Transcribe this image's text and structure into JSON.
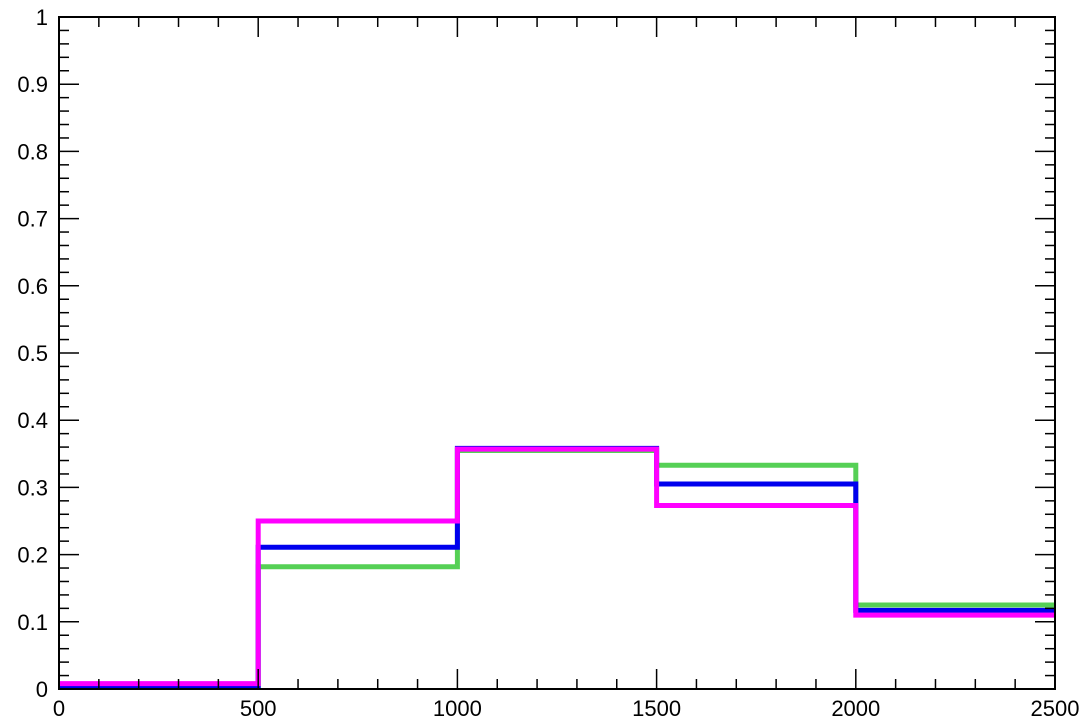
{
  "chart_data": {
    "type": "line",
    "title": "",
    "xlabel": "",
    "ylabel": "",
    "xlim": [
      0,
      2500
    ],
    "ylim": [
      0,
      1
    ],
    "grid": false,
    "x_ticks": [
      0,
      500,
      1000,
      1500,
      2000,
      2500
    ],
    "x_tick_labels": [
      "0",
      "500",
      "1000",
      "1500",
      "2000",
      "2500"
    ],
    "y_ticks": [
      0,
      0.1,
      0.2,
      0.3,
      0.4,
      0.5,
      0.6,
      0.7,
      0.8,
      0.9,
      1
    ],
    "y_tick_labels": [
      "0",
      "0.1",
      "0.2",
      "0.3",
      "0.4",
      "0.5",
      "0.6",
      "0.7",
      "0.8",
      "0.9",
      "1"
    ],
    "bin_edges": [
      0,
      500,
      1000,
      1500,
      2000,
      2500
    ],
    "series": [
      {
        "color": "#55d055",
        "values": [
          0.005,
          0.182,
          0.355,
          0.333,
          0.125
        ]
      },
      {
        "color": "#0000ee",
        "values": [
          0.005,
          0.211,
          0.358,
          0.305,
          0.117
        ]
      },
      {
        "color": "#ff00ff",
        "values": [
          0.008,
          0.25,
          0.357,
          0.273,
          0.11
        ]
      }
    ]
  }
}
